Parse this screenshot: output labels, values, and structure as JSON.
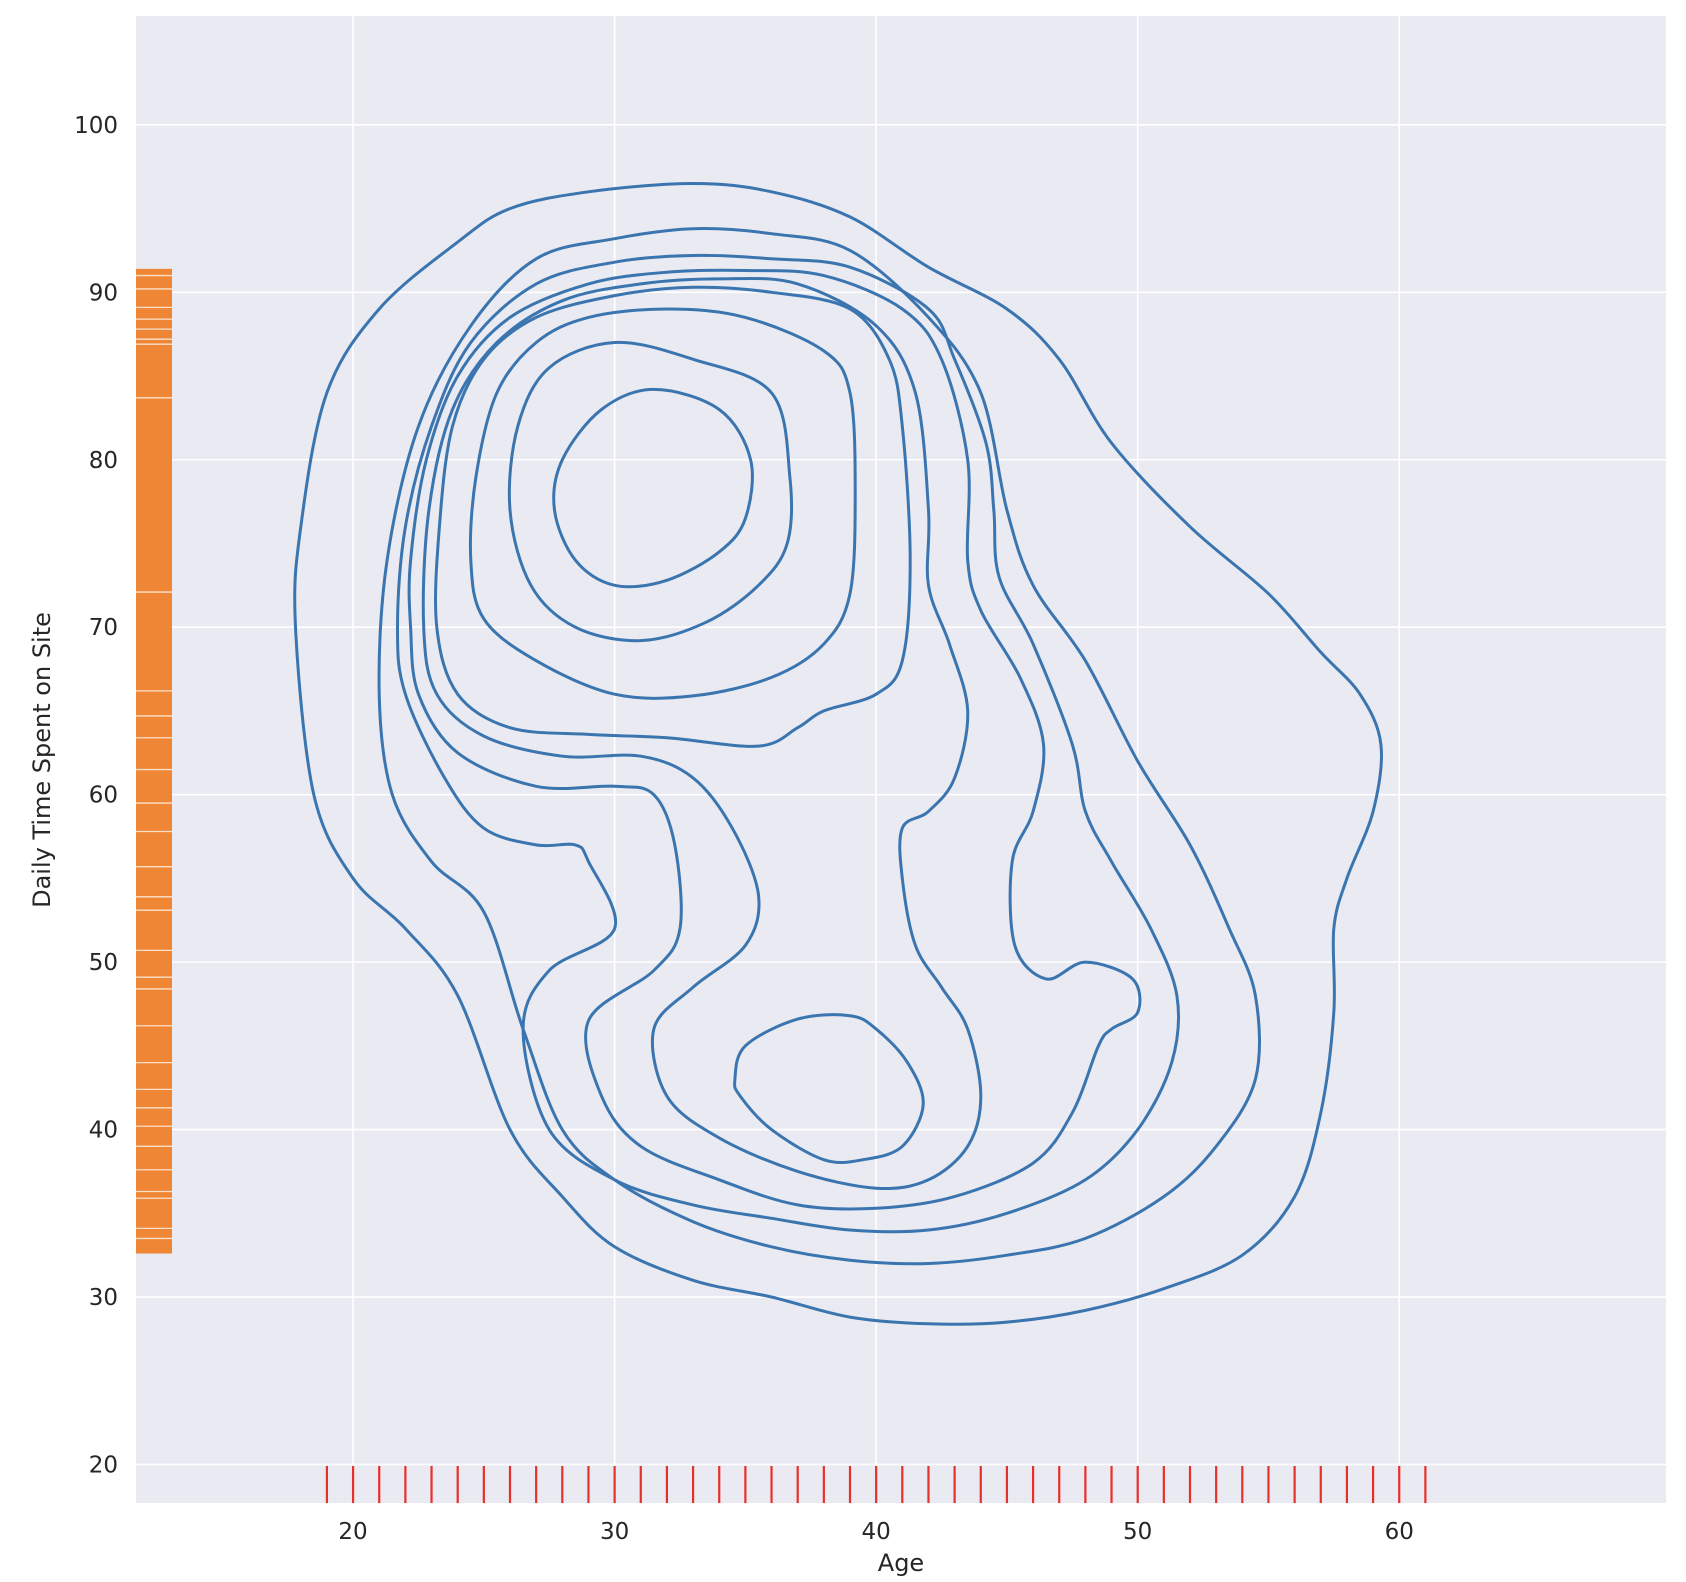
{
  "chart_data": {
    "type": "kde-contour",
    "xlabel": "Age",
    "ylabel": "Daily Time Spent on Site",
    "xlim": [
      11.7,
      70.2
    ],
    "ylim": [
      17.7,
      106.5
    ],
    "xticks": [
      20,
      30,
      40,
      50,
      60
    ],
    "yticks": [
      20,
      30,
      40,
      50,
      60,
      70,
      80,
      90,
      100
    ],
    "grid": true,
    "colors": {
      "background": "#eaeaf2",
      "grid": "#ffffff",
      "contour": "#3b75af",
      "x_rug": "#e8302a",
      "y_rug": "#ef8636"
    },
    "x_rug_values": [
      19,
      20,
      21,
      22,
      23,
      24,
      25,
      26,
      27,
      28,
      29,
      30,
      31,
      32,
      33,
      34,
      35,
      36,
      37,
      38,
      39,
      40,
      41,
      42,
      43,
      44,
      45,
      46,
      47,
      48,
      49,
      50,
      51,
      52,
      53,
      54,
      55,
      56,
      57,
      58,
      59,
      60,
      61
    ],
    "y_rug_range": [
      32.6,
      91.4
    ],
    "contours": [
      [
        [
          17.8,
          70
        ],
        [
          18.5,
          60
        ],
        [
          20,
          55
        ],
        [
          22,
          52
        ],
        [
          24,
          48
        ],
        [
          26,
          40
        ],
        [
          28,
          36
        ],
        [
          30,
          33
        ],
        [
          33,
          31
        ],
        [
          36,
          30
        ],
        [
          39,
          28.8
        ],
        [
          42,
          28.4
        ],
        [
          45,
          28.5
        ],
        [
          48,
          29.2
        ],
        [
          51,
          30.5
        ],
        [
          54,
          32.5
        ],
        [
          56,
          36
        ],
        [
          57,
          41
        ],
        [
          57.5,
          47
        ],
        [
          57.5,
          52
        ],
        [
          58,
          55
        ],
        [
          59,
          59
        ],
        [
          59.3,
          63
        ],
        [
          58.5,
          66
        ],
        [
          57,
          68.5
        ],
        [
          55,
          72
        ],
        [
          52,
          76
        ],
        [
          49,
          81
        ],
        [
          47,
          86
        ],
        [
          45,
          89
        ],
        [
          42,
          91.5
        ],
        [
          39,
          94.5
        ],
        [
          36,
          96
        ],
        [
          33,
          96.5
        ],
        [
          29,
          96
        ],
        [
          26,
          95
        ],
        [
          24,
          93
        ],
        [
          21,
          89
        ],
        [
          19,
          84
        ],
        [
          18,
          76
        ],
        [
          17.8,
          70
        ]
      ],
      [
        [
          21,
          66
        ],
        [
          21.5,
          60
        ],
        [
          23,
          56
        ],
        [
          25,
          53
        ],
        [
          26.5,
          46
        ],
        [
          28,
          40
        ],
        [
          30,
          37
        ],
        [
          33,
          34.5
        ],
        [
          36,
          33
        ],
        [
          39,
          32.2
        ],
        [
          42,
          32
        ],
        [
          45,
          32.5
        ],
        [
          48,
          33.5
        ],
        [
          51,
          36
        ],
        [
          53,
          39
        ],
        [
          54.5,
          43
        ],
        [
          54.5,
          48
        ],
        [
          53.5,
          52
        ],
        [
          52,
          57
        ],
        [
          50,
          62
        ],
        [
          48,
          68
        ],
        [
          46,
          72.5
        ],
        [
          45,
          77
        ],
        [
          44,
          84
        ],
        [
          42,
          88.5
        ],
        [
          39,
          92.5
        ],
        [
          36,
          93.5
        ],
        [
          33,
          93.8
        ],
        [
          30,
          93.2
        ],
        [
          27,
          92
        ],
        [
          24.5,
          88
        ],
        [
          22.5,
          82
        ],
        [
          21.3,
          74
        ],
        [
          21,
          66
        ]
      ],
      [
        [
          21.7,
          70
        ],
        [
          22,
          66
        ],
        [
          23.5,
          61
        ],
        [
          25,
          58
        ],
        [
          27,
          57
        ],
        [
          28.5,
          57
        ],
        [
          29,
          56
        ],
        [
          30,
          52
        ],
        [
          27.5,
          49.5
        ],
        [
          26.5,
          46
        ],
        [
          27.5,
          40
        ],
        [
          30,
          37
        ],
        [
          33,
          35.5
        ],
        [
          36,
          34.7
        ],
        [
          39,
          34
        ],
        [
          42,
          34
        ],
        [
          45,
          35
        ],
        [
          48,
          37
        ],
        [
          50,
          40
        ],
        [
          51.3,
          44
        ],
        [
          51.5,
          48
        ],
        [
          50.5,
          52
        ],
        [
          49,
          56
        ],
        [
          48,
          59
        ],
        [
          47.5,
          63
        ],
        [
          46,
          69
        ],
        [
          44.7,
          73
        ],
        [
          44.5,
          77
        ],
        [
          44.2,
          81
        ],
        [
          43,
          86
        ],
        [
          42,
          89
        ],
        [
          39,
          91.5
        ],
        [
          36,
          92
        ],
        [
          33,
          92.2
        ],
        [
          30,
          91.8
        ],
        [
          27,
          90.5
        ],
        [
          24.5,
          87
        ],
        [
          23,
          82
        ],
        [
          22,
          76
        ],
        [
          21.7,
          70
        ]
      ],
      [
        [
          22.2,
          70
        ],
        [
          22.5,
          66
        ],
        [
          24,
          62.5
        ],
        [
          27,
          60.5
        ],
        [
          30,
          60.5
        ],
        [
          31.5,
          60
        ],
        [
          32.3,
          57
        ],
        [
          32.5,
          52
        ],
        [
          31.5,
          49.5
        ],
        [
          29,
          46.5
        ],
        [
          29.5,
          42
        ],
        [
          31,
          39
        ],
        [
          34,
          37
        ],
        [
          37,
          35.5
        ],
        [
          40,
          35.3
        ],
        [
          43,
          36
        ],
        [
          46,
          38
        ],
        [
          47.5,
          41
        ],
        [
          48.5,
          45
        ],
        [
          49,
          46
        ],
        [
          50,
          47
        ],
        [
          49.8,
          49
        ],
        [
          48,
          50
        ],
        [
          46.5,
          49
        ],
        [
          45.3,
          51
        ],
        [
          45.2,
          56
        ],
        [
          46,
          59
        ],
        [
          46.4,
          63
        ],
        [
          45.5,
          67
        ],
        [
          44,
          71
        ],
        [
          43.5,
          74
        ],
        [
          43.5,
          80
        ],
        [
          42.5,
          86
        ],
        [
          41,
          89
        ],
        [
          38,
          91
        ],
        [
          35,
          91.3
        ],
        [
          32,
          91.2
        ],
        [
          29,
          90.5
        ],
        [
          26,
          88.5
        ],
        [
          24,
          85
        ],
        [
          22.8,
          80
        ],
        [
          22.2,
          74
        ],
        [
          22.2,
          70
        ]
      ],
      [
        [
          22.7,
          70
        ],
        [
          23.2,
          66
        ],
        [
          25,
          63.5
        ],
        [
          28,
          62.3
        ],
        [
          31,
          62.3
        ],
        [
          33,
          61
        ],
        [
          34.5,
          58
        ],
        [
          35.5,
          54
        ],
        [
          35,
          51
        ],
        [
          33,
          48.5
        ],
        [
          31.5,
          46
        ],
        [
          32,
          42
        ],
        [
          34,
          39.5
        ],
        [
          37,
          37.5
        ],
        [
          40,
          36.5
        ],
        [
          42,
          37
        ],
        [
          43.5,
          39
        ],
        [
          44,
          42
        ],
        [
          43.5,
          46
        ],
        [
          42.5,
          48.5
        ],
        [
          41.5,
          51
        ],
        [
          41,
          55
        ],
        [
          41,
          58
        ],
        [
          42,
          59
        ],
        [
          43,
          61
        ],
        [
          43.5,
          65
        ],
        [
          42.8,
          69
        ],
        [
          42,
          72.5
        ],
        [
          42,
          77
        ],
        [
          41.5,
          84
        ],
        [
          40,
          88
        ],
        [
          37,
          90.5
        ],
        [
          34,
          90.8
        ],
        [
          31,
          90.5
        ],
        [
          28,
          89.5
        ],
        [
          25.5,
          87
        ],
        [
          23.8,
          83
        ],
        [
          22.9,
          77
        ],
        [
          22.7,
          70
        ]
      ],
      [
        [
          23.2,
          70
        ],
        [
          24,
          66
        ],
        [
          26,
          64
        ],
        [
          29,
          63.6
        ],
        [
          32,
          63.4
        ],
        [
          35.5,
          62.9
        ],
        [
          37,
          64
        ],
        [
          38,
          65
        ],
        [
          40,
          66
        ],
        [
          41,
          68
        ],
        [
          41.3,
          74
        ],
        [
          41,
          82
        ],
        [
          40.5,
          86
        ],
        [
          39,
          89
        ],
        [
          36,
          90
        ],
        [
          33,
          90.3
        ],
        [
          30,
          89.8
        ],
        [
          27,
          88.5
        ],
        [
          25,
          86
        ],
        [
          23.8,
          82
        ],
        [
          23.3,
          76
        ],
        [
          23.2,
          70
        ]
      ],
      [
        [
          24.5,
          74
        ],
        [
          25,
          70.5
        ],
        [
          27,
          68
        ],
        [
          30,
          66
        ],
        [
          33,
          65.9
        ],
        [
          36,
          67
        ],
        [
          38,
          69
        ],
        [
          39,
          72
        ],
        [
          39.2,
          78
        ],
        [
          39,
          84
        ],
        [
          38,
          86.5
        ],
        [
          35,
          88.5
        ],
        [
          32,
          89
        ],
        [
          29,
          88.5
        ],
        [
          27,
          87
        ],
        [
          25.5,
          84
        ],
        [
          24.7,
          79
        ],
        [
          24.5,
          74
        ]
      ],
      [
        [
          26,
          77
        ],
        [
          26.8,
          72.5
        ],
        [
          28.5,
          70
        ],
        [
          31,
          69.2
        ],
        [
          33.5,
          70.3
        ],
        [
          35.5,
          72.5
        ],
        [
          36.6,
          75
        ],
        [
          36.7,
          79
        ],
        [
          36,
          84
        ],
        [
          33,
          86
        ],
        [
          30,
          87
        ],
        [
          27.5,
          85.5
        ],
        [
          26.3,
          82
        ],
        [
          26,
          77
        ]
      ],
      [
        [
          27.7,
          77
        ],
        [
          28.5,
          74
        ],
        [
          30,
          72.5
        ],
        [
          32,
          72.8
        ],
        [
          34,
          74.5
        ],
        [
          35,
          76.5
        ],
        [
          35.2,
          80
        ],
        [
          34,
          83
        ],
        [
          31.5,
          84.2
        ],
        [
          29.5,
          83
        ],
        [
          28,
          80
        ],
        [
          27.7,
          77
        ]
      ],
      [
        [
          34.6,
          43
        ],
        [
          35,
          45
        ],
        [
          37,
          46.6
        ],
        [
          39,
          46.8
        ],
        [
          40,
          46
        ],
        [
          41.2,
          44
        ],
        [
          41.8,
          41.5
        ],
        [
          41,
          39
        ],
        [
          39.5,
          38.2
        ],
        [
          38,
          38.2
        ],
        [
          36,
          40
        ],
        [
          34.8,
          42
        ],
        [
          34.6,
          43
        ]
      ]
    ]
  }
}
